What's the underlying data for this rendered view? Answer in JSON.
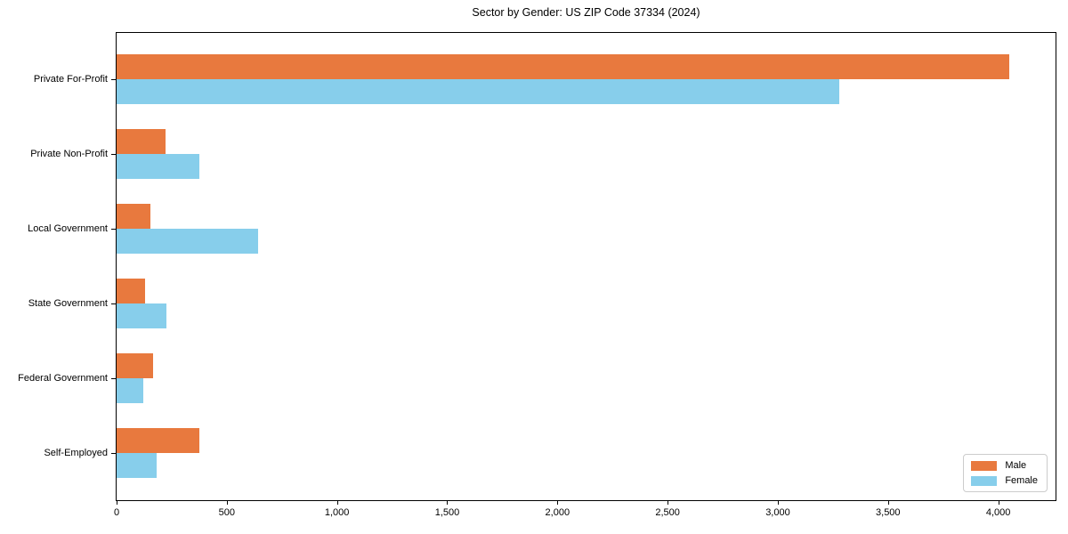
{
  "chart_data": {
    "type": "bar",
    "orientation": "horizontal",
    "title": "Sector by Gender: US ZIP Code 37334 (2024)",
    "categories": [
      "Private For-Profit",
      "Private Non-Profit",
      "Local Government",
      "State Government",
      "Federal Government",
      "Self-Employed"
    ],
    "series": [
      {
        "name": "Male",
        "color": "#e8793e",
        "values": [
          4050,
          220,
          155,
          130,
          165,
          375
        ]
      },
      {
        "name": "Female",
        "color": "#87ceeb",
        "values": [
          3280,
          375,
          640,
          225,
          120,
          180
        ]
      }
    ],
    "xlabel": "",
    "ylabel": "",
    "xlim": [
      0,
      4260
    ],
    "xticks": [
      0,
      500,
      1000,
      1500,
      2000,
      2500,
      3000,
      3500,
      4000
    ],
    "xtick_labels": [
      "0",
      "500",
      "1,000",
      "1,500",
      "2,000",
      "2,500",
      "3,000",
      "3,500",
      "4,000"
    ],
    "grid": false,
    "legend": {
      "position": "lower right",
      "labels": [
        "Male",
        "Female"
      ]
    },
    "colors": {
      "axis": "#000000",
      "background": "#ffffff",
      "legend_border": "#cccccc"
    }
  }
}
